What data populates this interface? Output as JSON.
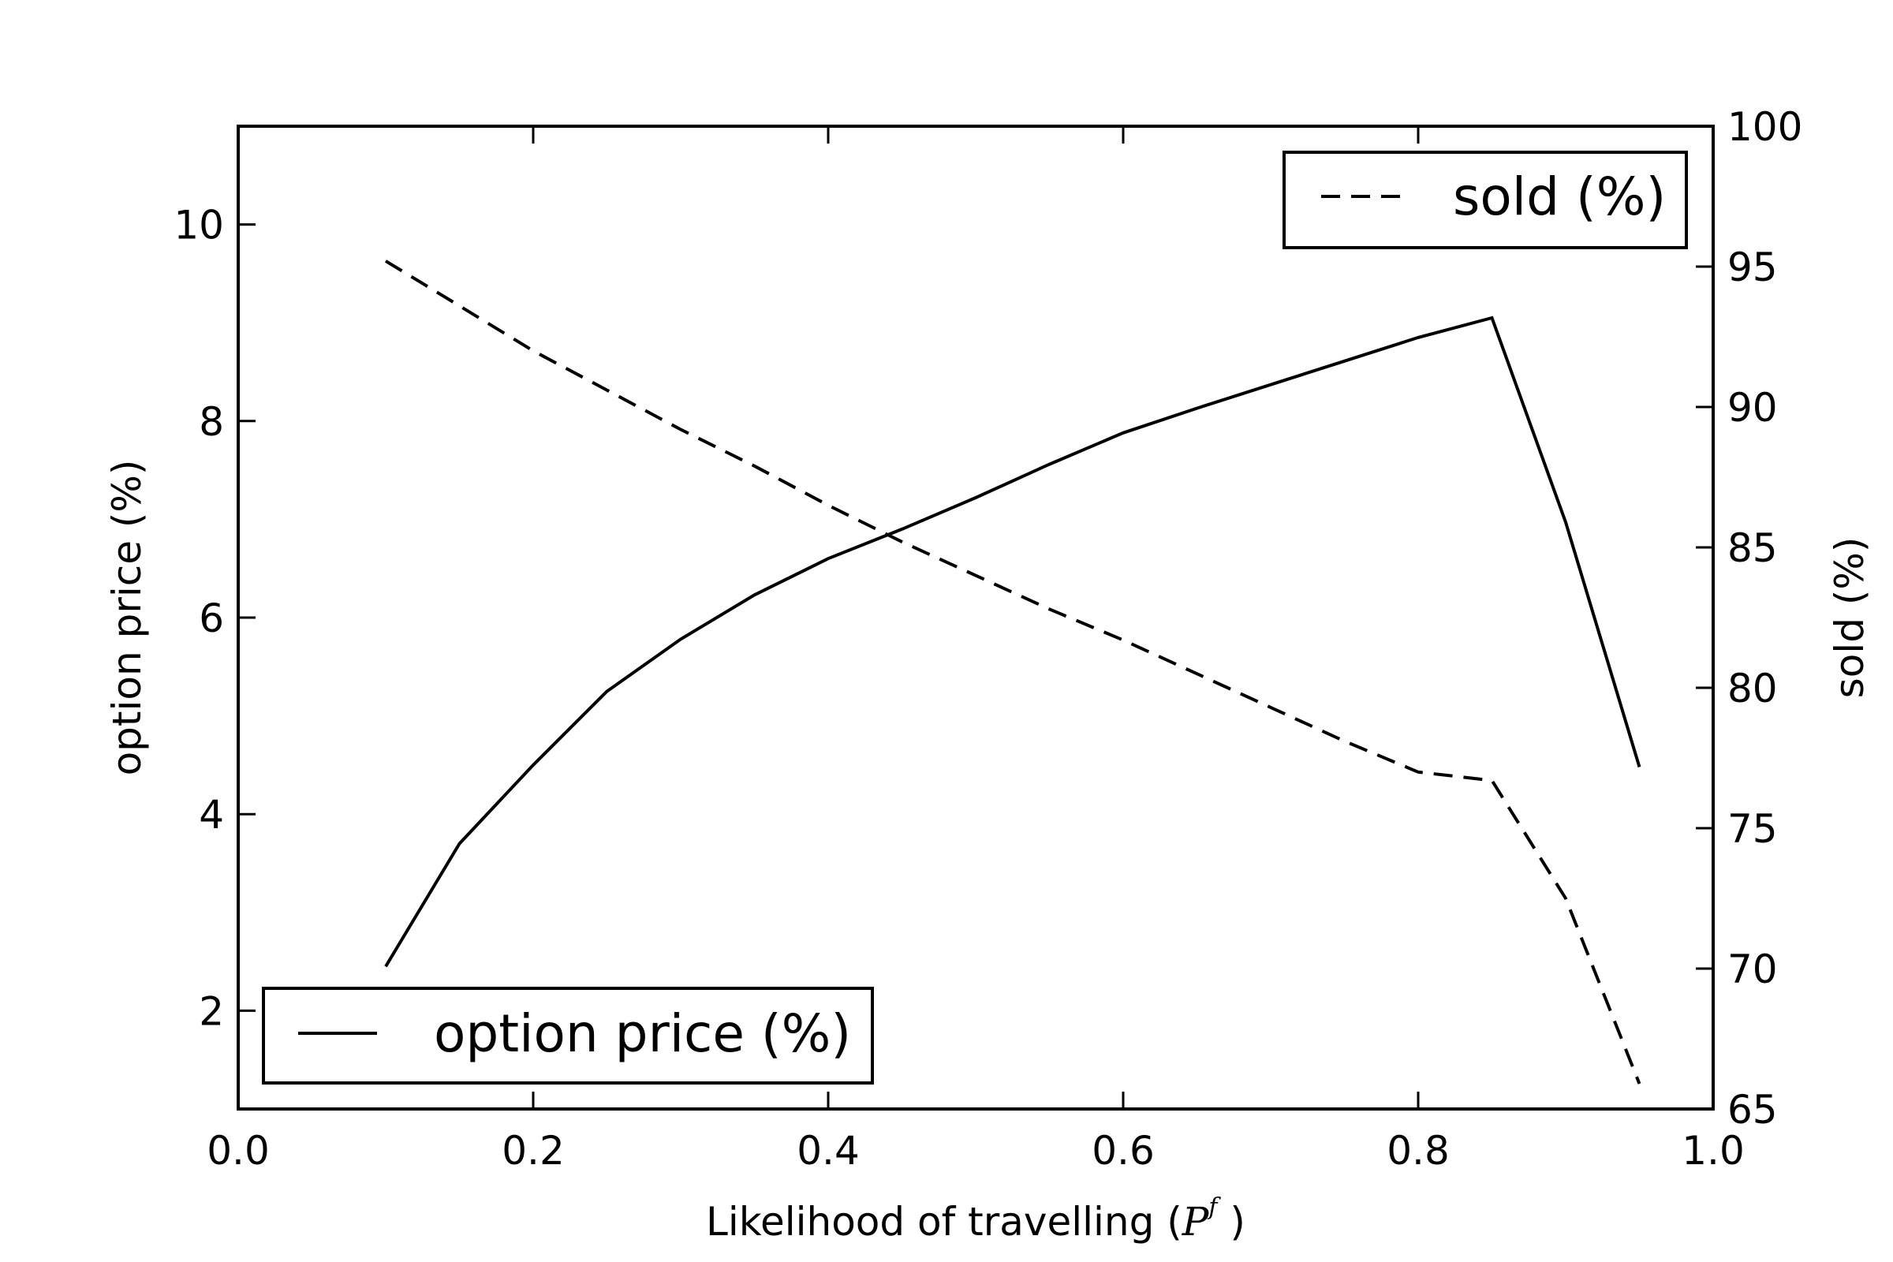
{
  "chart_data": {
    "type": "line",
    "xlabel_prefix": "Likelihood of travelling (",
    "xlabel_symbol": "P",
    "xlabel_superscript": "f",
    "xlabel_suffix": " )",
    "ylabel_left": "option price (%)",
    "ylabel_right": "sold (%)",
    "xlim": [
      0.0,
      1.0
    ],
    "ylim_left": [
      1,
      11
    ],
    "ylim_right": [
      65,
      100
    ],
    "x_ticks": [
      "0.0",
      "0.2",
      "0.4",
      "0.6",
      "0.8",
      "1.0"
    ],
    "y_ticks_left": [
      "2",
      "4",
      "6",
      "8",
      "10"
    ],
    "y_ticks_right": [
      "65",
      "70",
      "75",
      "80",
      "85",
      "90",
      "95",
      "100"
    ],
    "grid": false,
    "x": [
      0.1,
      0.15,
      0.2,
      0.25,
      0.3,
      0.35,
      0.4,
      0.45,
      0.5,
      0.55,
      0.6,
      0.65,
      0.7,
      0.75,
      0.8,
      0.85,
      0.9,
      0.95
    ],
    "series": [
      {
        "name": "option price (%)",
        "axis": "left",
        "style": "solid",
        "color": "#000000",
        "legend_position": "lower-left",
        "values": [
          2.45,
          3.7,
          4.5,
          5.25,
          5.78,
          6.23,
          6.6,
          6.9,
          7.22,
          7.56,
          7.88,
          8.13,
          8.37,
          8.61,
          8.85,
          9.05,
          6.97,
          4.48
        ]
      },
      {
        "name": "sold (%)",
        "axis": "right",
        "style": "dashed",
        "color": "#000000",
        "legend_position": "upper-right",
        "values": [
          95.2,
          93.6,
          92.0,
          90.6,
          89.2,
          87.9,
          86.5,
          85.2,
          84.0,
          82.8,
          81.7,
          80.5,
          79.3,
          78.1,
          77.0,
          76.7,
          72.5,
          65.9
        ]
      }
    ]
  }
}
